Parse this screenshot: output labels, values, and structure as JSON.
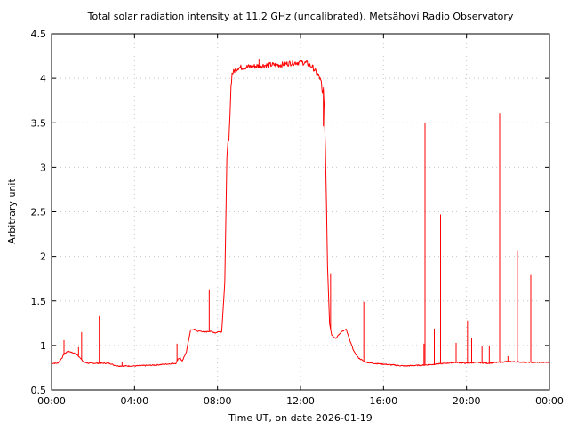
{
  "chart_data": {
    "type": "line",
    "title": "Total solar radiation intensity at 11.2 GHz (uncalibrated). Metsähovi Radio Observatory",
    "xlabel": "Time UT, on date 2026-01-19",
    "ylabel": "Arbitrary unit",
    "xlim": [
      0,
      24
    ],
    "ylim": [
      0.5,
      4.5
    ],
    "x_ticks": [
      0,
      4,
      8,
      12,
      16,
      20,
      24
    ],
    "x_tick_labels": [
      "00:00",
      "04:00",
      "08:00",
      "12:00",
      "16:00",
      "20:00",
      "00:00"
    ],
    "y_ticks": [
      0.5,
      1,
      1.5,
      2,
      2.5,
      3,
      3.5,
      4,
      4.5
    ],
    "y_tick_labels": [
      "0.5",
      "1",
      "1.5",
      "2",
      "2.5",
      "3",
      "3.5",
      "4",
      "4.5"
    ],
    "grid": true,
    "series_color": "#ff0000",
    "series": [
      {
        "x": [
          0,
          0.3,
          0.5,
          0.6,
          0.75,
          0.9,
          1.0,
          1.2,
          1.4,
          1.5,
          1.6,
          1.8,
          2.0,
          2.2,
          2.4,
          2.6,
          2.8,
          3.0,
          3.2,
          3.5,
          4.0,
          5.0,
          5.5,
          6.0,
          6.1,
          6.2,
          6.3,
          6.5,
          6.7,
          6.9,
          7.0,
          7.2,
          7.4,
          7.6,
          7.8,
          7.9,
          8.0,
          8.1,
          8.2,
          8.35,
          8.4,
          8.45,
          8.5,
          8.55,
          8.6,
          8.65,
          8.7,
          8.8,
          8.9,
          9.0,
          9.5,
          10.0,
          10.5,
          11.0,
          11.5,
          12.0,
          12.3,
          12.6,
          12.8,
          12.9,
          13.0,
          13.05,
          13.1,
          13.15,
          13.2,
          13.25,
          13.3,
          13.4,
          13.5,
          13.7,
          14.0,
          14.2,
          14.4,
          14.6,
          14.8,
          15.0,
          15.2,
          15.5,
          16.0,
          17.0,
          18.0,
          19.0,
          19.5,
          20.0,
          20.5,
          21.0,
          21.5,
          22.0,
          23.0,
          24.0
        ],
        "y": [
          0.8,
          0.8,
          0.86,
          0.9,
          0.93,
          0.93,
          0.92,
          0.9,
          0.86,
          0.82,
          0.81,
          0.8,
          0.8,
          0.8,
          0.8,
          0.8,
          0.8,
          0.78,
          0.77,
          0.77,
          0.77,
          0.78,
          0.79,
          0.8,
          0.85,
          0.86,
          0.82,
          0.93,
          1.17,
          1.18,
          1.16,
          1.16,
          1.15,
          1.16,
          1.15,
          1.14,
          1.15,
          1.16,
          1.15,
          1.7,
          2.4,
          3.1,
          3.28,
          3.3,
          3.6,
          3.9,
          4.05,
          4.08,
          4.1,
          4.12,
          4.13,
          4.14,
          4.15,
          4.15,
          4.17,
          4.18,
          4.17,
          4.12,
          4.05,
          4.02,
          3.95,
          3.82,
          3.9,
          3.6,
          3.2,
          2.6,
          1.9,
          1.25,
          1.12,
          1.08,
          1.16,
          1.18,
          1.04,
          0.92,
          0.86,
          0.83,
          0.81,
          0.8,
          0.79,
          0.77,
          0.78,
          0.8,
          0.81,
          0.8,
          0.81,
          0.8,
          0.81,
          0.82,
          0.81,
          0.81
        ]
      }
    ],
    "spikes": [
      {
        "x": 0.6,
        "y": 1.06
      },
      {
        "x": 1.3,
        "y": 0.98
      },
      {
        "x": 1.45,
        "y": 1.15
      },
      {
        "x": 2.3,
        "y": 1.33
      },
      {
        "x": 3.4,
        "y": 0.82
      },
      {
        "x": 6.05,
        "y": 1.02
      },
      {
        "x": 7.6,
        "y": 1.63
      },
      {
        "x": 10.0,
        "y": 4.22
      },
      {
        "x": 13.1,
        "y": 3.46
      },
      {
        "x": 13.45,
        "y": 1.81
      },
      {
        "x": 15.05,
        "y": 1.49
      },
      {
        "x": 17.95,
        "y": 1.02
      },
      {
        "x": 18.0,
        "y": 3.5
      },
      {
        "x": 18.45,
        "y": 1.19
      },
      {
        "x": 18.75,
        "y": 2.47
      },
      {
        "x": 19.35,
        "y": 1.84
      },
      {
        "x": 19.5,
        "y": 1.03
      },
      {
        "x": 20.05,
        "y": 1.28
      },
      {
        "x": 20.25,
        "y": 1.08
      },
      {
        "x": 20.75,
        "y": 0.99
      },
      {
        "x": 21.1,
        "y": 1.0
      },
      {
        "x": 21.6,
        "y": 3.61
      },
      {
        "x": 22.0,
        "y": 0.88
      },
      {
        "x": 22.45,
        "y": 2.07
      },
      {
        "x": 23.1,
        "y": 1.8
      }
    ]
  }
}
